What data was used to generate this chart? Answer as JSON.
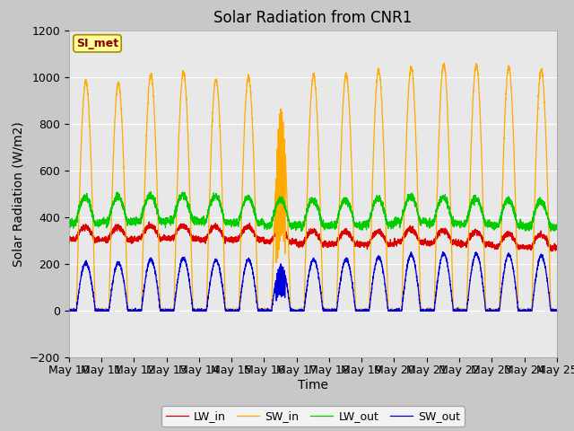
{
  "title": "Solar Radiation from CNR1",
  "xlabel": "Time",
  "ylabel": "Solar Radiation (W/m2)",
  "ylim": [
    -200,
    1200
  ],
  "yticks": [
    -200,
    0,
    200,
    400,
    600,
    800,
    1000,
    1200
  ],
  "n_days": 15,
  "legend_labels": [
    "LW_in",
    "SW_in",
    "LW_out",
    "SW_out"
  ],
  "line_colors": [
    "#dd0000",
    "#ffaa00",
    "#00cc00",
    "#0000dd"
  ],
  "annotation_text": "SI_met",
  "annotation_color": "#8b0000",
  "annotation_bg": "#ffff99",
  "annotation_border": "#aa8800",
  "fig_bg": "#c8c8c8",
  "axes_bg": "#e8e8e8",
  "grid_color": "#ffffff",
  "title_fontsize": 12,
  "axis_label_fontsize": 10,
  "tick_fontsize": 9,
  "legend_fontsize": 9,
  "xticklabels": [
    "May 10",
    "May 11",
    "May 12",
    "May 13",
    "May 14",
    "May 15",
    "May 16",
    "May 17",
    "May 18",
    "May 19",
    "May 20",
    "May 21",
    "May 22",
    "May 23",
    "May 24",
    "May 25"
  ],
  "sw_in_peaks": [
    980,
    975,
    1010,
    1020,
    990,
    1000,
    870,
    1010,
    1010,
    1030,
    1040,
    1055,
    1050,
    1040,
    1030
  ],
  "sw_out_peaks": [
    205,
    205,
    220,
    225,
    215,
    220,
    195,
    220,
    220,
    230,
    240,
    245,
    245,
    240,
    235
  ],
  "lw_in_base": [
    305,
    305,
    310,
    310,
    305,
    305,
    295,
    285,
    285,
    285,
    295,
    290,
    285,
    275,
    270
  ],
  "lw_out_base": [
    375,
    380,
    385,
    385,
    380,
    375,
    365,
    365,
    365,
    370,
    380,
    375,
    370,
    365,
    360
  ]
}
